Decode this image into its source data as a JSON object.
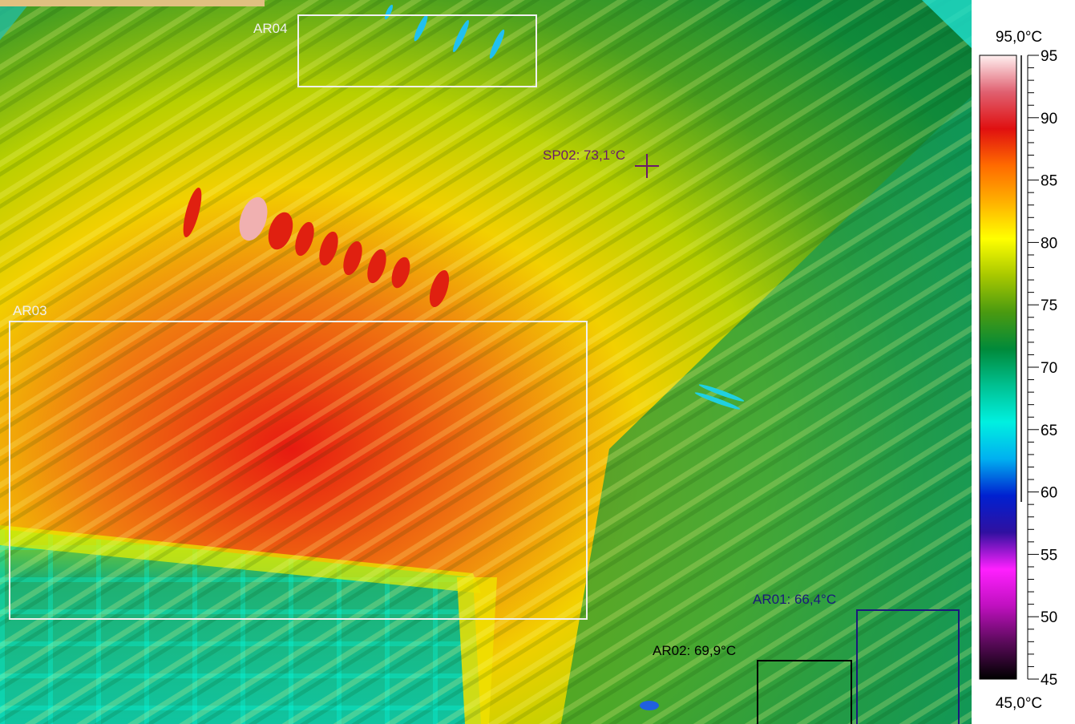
{
  "regions": [
    {
      "label": "AR04",
      "color": "#f0f0f0"
    },
    {
      "label": "AR03",
      "color": "#f0f0f0"
    },
    {
      "label": "AR02: 69,9°C",
      "color": "#000000"
    },
    {
      "label": "AR01: 66,4°C",
      "color": "#1a1a7a"
    }
  ],
  "spot": {
    "label": "SP02: 73,1°C",
    "color": "#6a1a6a"
  },
  "scale": {
    "max_label": "95,0°C",
    "min_label": "45,0°C",
    "ticks": [
      "95",
      "90",
      "85",
      "80",
      "75",
      "70",
      "65",
      "60",
      "55",
      "50",
      "45"
    ],
    "range": [
      45,
      95
    ],
    "palette": [
      "#000000",
      "#5a0a5a",
      "#c010c0",
      "#ff20ff",
      "#3010a0",
      "#0020d0",
      "#00b0f0",
      "#00f0e0",
      "#00c090",
      "#008a3a",
      "#4a9a10",
      "#a8c800",
      "#ffff00",
      "#ffb000",
      "#ff6a00",
      "#e01010",
      "#e06070",
      "#fff0f0"
    ]
  }
}
